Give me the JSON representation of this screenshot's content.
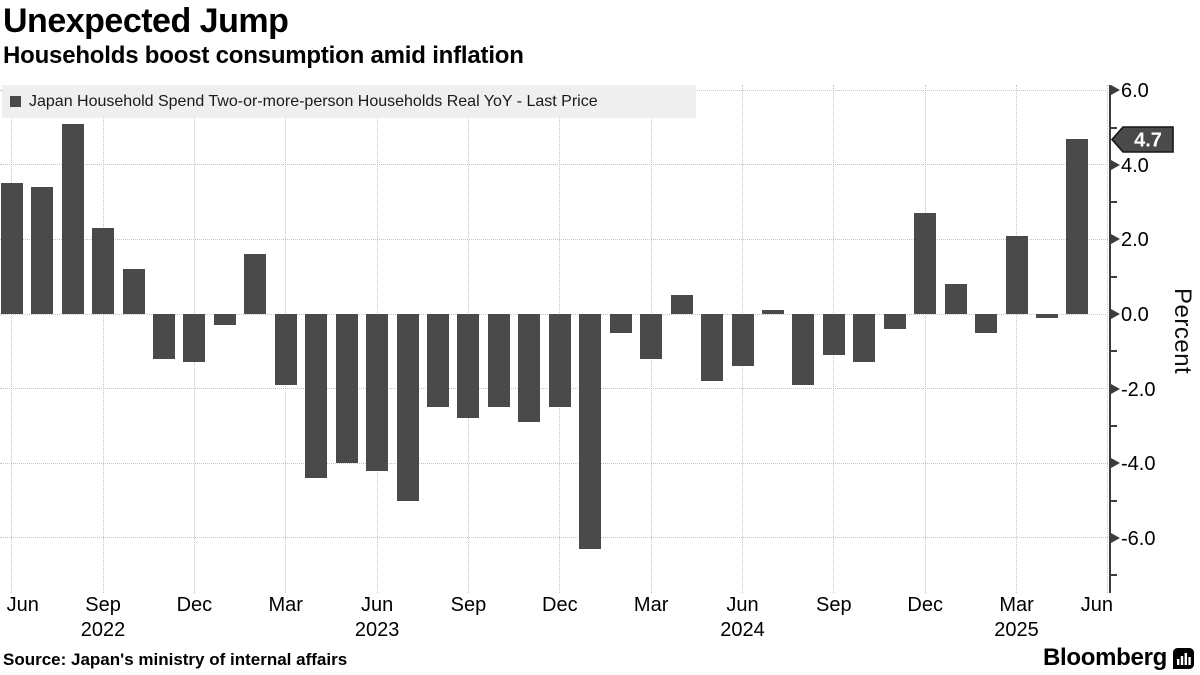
{
  "header": {
    "title": "Unexpected Jump",
    "subtitle": "Households boost consumption amid inflation"
  },
  "legend": {
    "label": "Japan Household Spend Two-or-more-person Households Real YoY - Last Price",
    "marker_color": "#4a4a4a"
  },
  "chart_data": {
    "type": "bar",
    "title": "Unexpected Jump",
    "subtitle": "Households boost consumption amid inflation",
    "series_name": "Japan Household Spend Two-or-more-person Households Real YoY - Last Price",
    "x": [
      "Jun 2022",
      "Jul 2022",
      "Aug 2022",
      "Sep 2022",
      "Oct 2022",
      "Nov 2022",
      "Dec 2022",
      "Jan 2023",
      "Feb 2023",
      "Mar 2023",
      "Apr 2023",
      "May 2023",
      "Jun 2023",
      "Jul 2023",
      "Aug 2023",
      "Sep 2023",
      "Oct 2023",
      "Nov 2023",
      "Dec 2023",
      "Jan 2024",
      "Feb 2024",
      "Mar 2024",
      "Apr 2024",
      "May 2024",
      "Jun 2024",
      "Jul 2024",
      "Aug 2024",
      "Sep 2024",
      "Oct 2024",
      "Nov 2024",
      "Dec 2024",
      "Jan 2025",
      "Feb 2025",
      "Mar 2025",
      "Apr 2025",
      "May 2025"
    ],
    "values": [
      3.5,
      3.4,
      5.1,
      2.3,
      1.2,
      -1.2,
      -1.3,
      -0.3,
      1.6,
      -1.9,
      -4.4,
      -4.0,
      -4.2,
      -5.0,
      -2.5,
      -2.8,
      -2.5,
      -2.9,
      -2.5,
      -6.3,
      -0.5,
      -1.2,
      0.5,
      -1.8,
      -1.4,
      0.1,
      -1.9,
      -1.1,
      -1.3,
      -0.4,
      2.7,
      0.8,
      -0.5,
      2.1,
      -0.1,
      4.7
    ],
    "bar_color": "#4a4a4a",
    "ylabel": "Percent",
    "xlabel": "",
    "ylim": [
      -7.35,
      6.15
    ],
    "grid": "dotted, horizontal and vertical",
    "legend_position": "top-left",
    "y_major_ticks": [
      6,
      4,
      2,
      0,
      -2,
      -4,
      -6
    ],
    "y_major_tick_labels": [
      "6.0",
      "4.0",
      "2.0",
      "0.0",
      "-2.0",
      "-4.0",
      "-6.0"
    ],
    "y_minor_ticks": [
      5,
      3,
      1,
      -1,
      -3,
      -5,
      -7
    ],
    "x_ticks": [
      {
        "month_index": 0,
        "label": "Jun",
        "year": ""
      },
      {
        "month_index": 3,
        "label": "Sep",
        "year": "2022"
      },
      {
        "month_index": 6,
        "label": "Dec",
        "year": ""
      },
      {
        "month_index": 9,
        "label": "Mar",
        "year": ""
      },
      {
        "month_index": 12,
        "label": "Jun",
        "year": "2023"
      },
      {
        "month_index": 15,
        "label": "Sep",
        "year": ""
      },
      {
        "month_index": 18,
        "label": "Dec",
        "year": ""
      },
      {
        "month_index": 21,
        "label": "Mar",
        "year": ""
      },
      {
        "month_index": 24,
        "label": "Jun",
        "year": "2024"
      },
      {
        "month_index": 27,
        "label": "Sep",
        "year": ""
      },
      {
        "month_index": 30,
        "label": "Dec",
        "year": ""
      },
      {
        "month_index": 33,
        "label": "Mar",
        "year": "2025"
      },
      {
        "month_index": 36,
        "label": "Jun",
        "year": ""
      }
    ],
    "last_price": {
      "value": "4.7",
      "bg_color": "#4a4a4a",
      "text_color": "#ffffff"
    }
  },
  "footer": {
    "source": "Source: Japan's ministry of internal affairs",
    "brand": "Bloomberg"
  }
}
